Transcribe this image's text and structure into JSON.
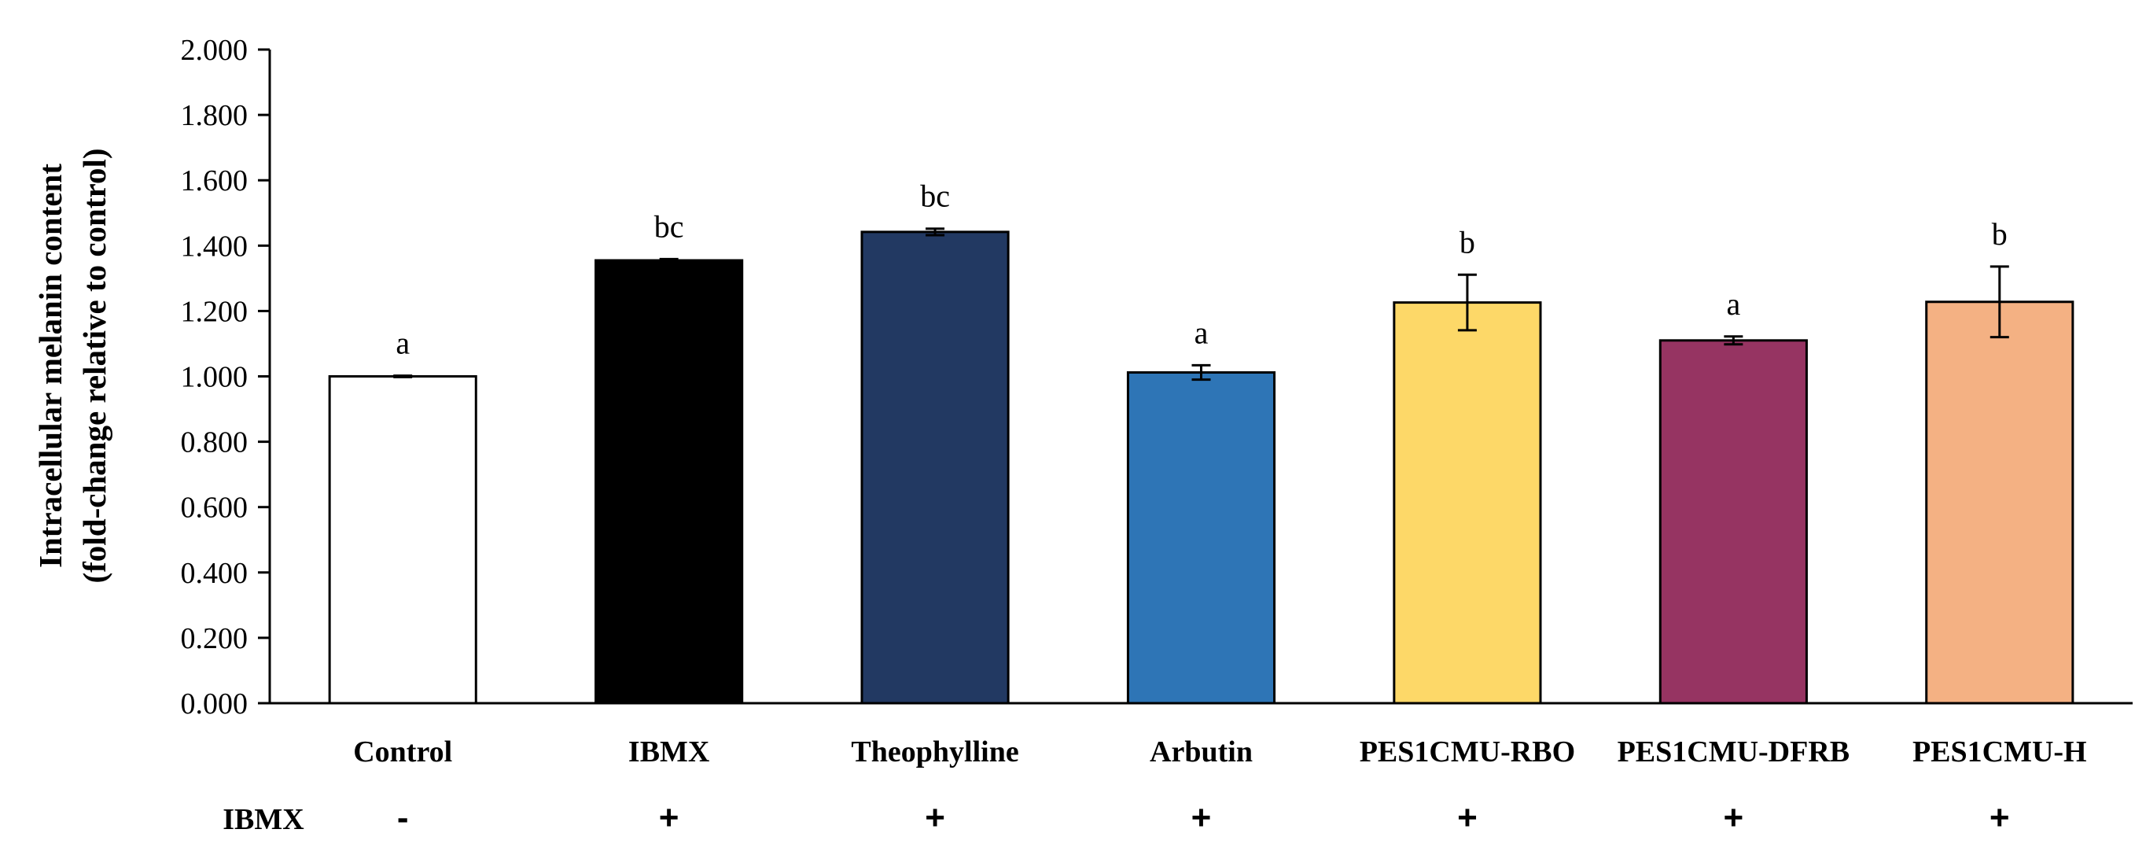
{
  "chart_data": {
    "type": "bar",
    "title": "",
    "ylabel_line1": "Intracellular melanin content",
    "ylabel_line2": "(fold-change relative to control)",
    "xlabel": "",
    "ylim": [
      0,
      2
    ],
    "yticks": [
      "0.000",
      "0.200",
      "0.400",
      "0.600",
      "0.800",
      "1.000",
      "1.200",
      "1.400",
      "1.600",
      "1.800",
      "2.000"
    ],
    "categories": [
      "Control",
      "IBMX",
      "Theophylline",
      "Arbutin",
      "PES1CMU-RBO",
      "PES1CMU-DFRB",
      "PES1CMU-H"
    ],
    "values": [
      1.0,
      1.355,
      1.442,
      1.012,
      1.226,
      1.11,
      1.228
    ],
    "errors": [
      0.002,
      0.004,
      0.01,
      0.022,
      0.085,
      0.012,
      0.108
    ],
    "significance": [
      "a",
      "bc",
      "bc",
      "a",
      "b",
      "a",
      "b"
    ],
    "bar_colors": [
      "#ffffff",
      "#000000",
      "#223962",
      "#2e75b6",
      "#fdd868",
      "#963462",
      "#f4b183"
    ],
    "ibmx_row_label": "IBMX",
    "ibmx_signs": [
      "-",
      "+",
      "+",
      "+",
      "+",
      "+",
      "+"
    ]
  }
}
